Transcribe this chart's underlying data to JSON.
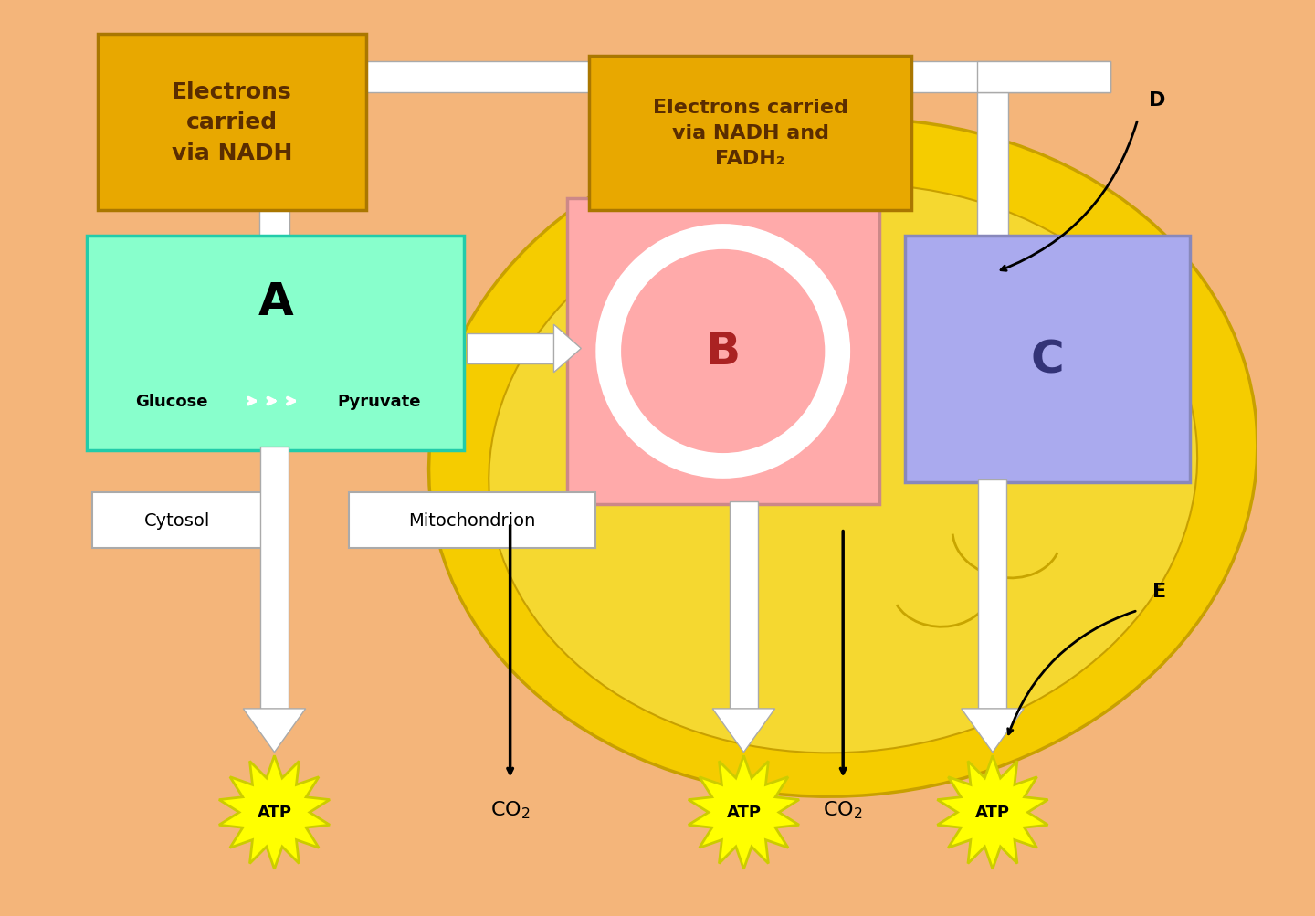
{
  "bg_color": "#F4B57A",
  "mito_outer_color": "#F5CC00",
  "mito_outer_edge": "#C8A000",
  "mito_inner_color": "#F5D830",
  "box_A_color": "#88FFCC",
  "box_A_edge": "#22CCAA",
  "box_B_color": "#FFAAAA",
  "box_B_edge": "#CC8888",
  "box_C_color": "#AAAAEE",
  "box_C_edge": "#8888BB",
  "label_box_color": "#E8A800",
  "label_box_edge": "#AA7700",
  "white": "#FFFFFF",
  "gray_edge": "#AAAAAA",
  "atp_fill": "#FFFF00",
  "atp_edge": "#CCCC00",
  "black": "#000000",
  "text_brown": "#5A2D00",
  "B_text_color": "#AA2222",
  "C_text_color": "#333377",
  "nadh_text": "Electrons\ncarried\nvia NADH",
  "nadh_fadh2_text": "Electrons carried\nvia NADH and\nFADH₂",
  "box_A_big_label": "A",
  "box_B_big_label": "B",
  "box_C_big_label": "C",
  "label_D": "D",
  "label_E": "E",
  "cytosol_label": "Cytosol",
  "mito_label": "Mitochondrion",
  "glucose_text": "Glucose",
  "pyruvate_text": "Pyruvate",
  "atp_text": "ATP",
  "co2_text": "CO₂"
}
